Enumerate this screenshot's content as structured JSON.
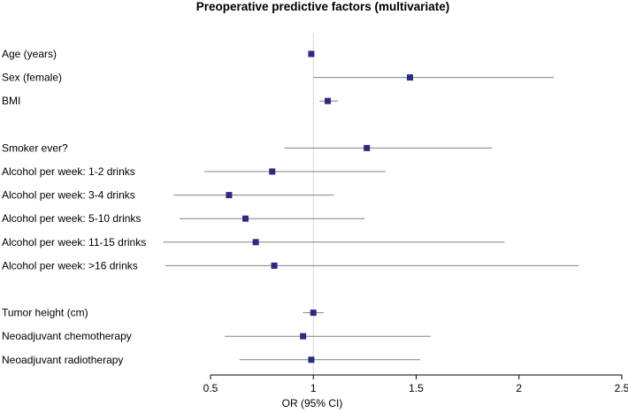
{
  "chart_data": {
    "type": "forest",
    "title": "Preoperative predictive factors (multivariate)",
    "xlabel": "OR (95% CI)",
    "xlim": [
      0.5,
      2.5
    ],
    "xticks": [
      "0.5",
      "1",
      "1.5",
      "2",
      "2.5"
    ],
    "reference_line": 1,
    "groups": [
      {
        "rows": [
          {
            "label": "Age (years)",
            "or": 0.99,
            "lo": 0.98,
            "hi": 1.0
          },
          {
            "label": "Sex (female)",
            "or": 1.47,
            "lo": 1.0,
            "hi": 2.17
          },
          {
            "label": "BMI",
            "or": 1.07,
            "lo": 1.03,
            "hi": 1.12
          }
        ]
      },
      {
        "rows": [
          {
            "label": "Smoker ever?",
            "or": 1.26,
            "lo": 0.86,
            "hi": 1.87
          },
          {
            "label": "Alcohol per week: 1-2 drinks",
            "or": 0.8,
            "lo": 0.47,
            "hi": 1.35
          },
          {
            "label": "Alcohol per week: 3-4 drinks",
            "or": 0.59,
            "lo": 0.32,
            "hi": 1.1
          },
          {
            "label": "Alcohol per week: 5-10 drinks",
            "or": 0.67,
            "lo": 0.35,
            "hi": 1.25
          },
          {
            "label": "Alcohol per week: 11-15 drinks",
            "or": 0.72,
            "lo": 0.27,
            "hi": 1.93
          },
          {
            "label": "Alcohol per week: >16 drinks",
            "or": 0.81,
            "lo": 0.28,
            "hi": 2.29
          }
        ]
      },
      {
        "rows": [
          {
            "label": "Tumor height (cm)",
            "or": 1.0,
            "lo": 0.95,
            "hi": 1.05
          },
          {
            "label": "Neoadjuvant chemotherapy",
            "or": 0.95,
            "lo": 0.57,
            "hi": 1.57
          },
          {
            "label": "Neoadjuvant radiotherapy",
            "or": 0.99,
            "lo": 0.64,
            "hi": 1.52
          }
        ]
      }
    ],
    "colors": {
      "point": "#2b2b80",
      "ci_line": "#808080",
      "reference_line": "#d8d8d8",
      "axis": "#000000"
    }
  }
}
